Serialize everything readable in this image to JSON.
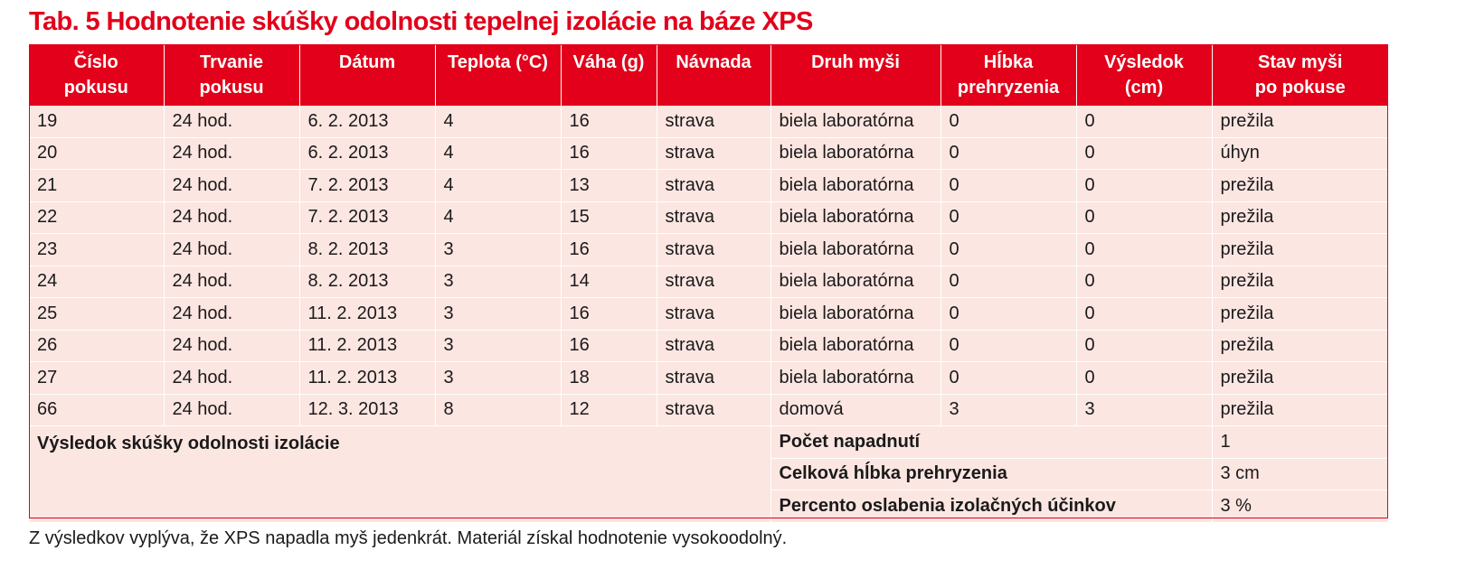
{
  "title": "Tab. 5 Hodnotenie skúšky odolnosti tepelnej izolácie na báze XPS",
  "columns": [
    [
      "Číslo",
      "pokusu"
    ],
    [
      "Trvanie",
      "pokusu"
    ],
    [
      "Dátum",
      ""
    ],
    [
      "Teplota (°C)",
      ""
    ],
    [
      "Váha (g)",
      ""
    ],
    [
      "Návnada",
      ""
    ],
    [
      "Druh myši",
      ""
    ],
    [
      "Hĺbka",
      "prehryzenia"
    ],
    [
      "Výsledok",
      "(cm)"
    ],
    [
      "Stav myši",
      "po pokuse"
    ]
  ],
  "rows": [
    [
      "19",
      "24 hod.",
      "6. 2. 2013",
      "4",
      "16",
      "strava",
      "biela laboratórna",
      "0",
      "0",
      "prežila"
    ],
    [
      "20",
      "24 hod.",
      "6. 2. 2013",
      "4",
      "16",
      "strava",
      "biela laboratórna",
      "0",
      "0",
      "úhyn"
    ],
    [
      "21",
      "24 hod.",
      "7. 2. 2013",
      "4",
      "13",
      "strava",
      "biela laboratórna",
      "0",
      "0",
      "prežila"
    ],
    [
      "22",
      "24 hod.",
      "7. 2. 2013",
      "4",
      "15",
      "strava",
      "biela laboratórna",
      "0",
      "0",
      "prežila"
    ],
    [
      "23",
      "24 hod.",
      "8. 2. 2013",
      "3",
      "16",
      "strava",
      "biela laboratórna",
      "0",
      "0",
      "prežila"
    ],
    [
      "24",
      "24 hod.",
      "8. 2. 2013",
      "3",
      "14",
      "strava",
      "biela laboratórna",
      "0",
      "0",
      "prežila"
    ],
    [
      "25",
      "24 hod.",
      "11. 2. 2013",
      "3",
      "16",
      "strava",
      "biela laboratórna",
      "0",
      "0",
      "prežila"
    ],
    [
      "26",
      "24 hod.",
      "11. 2. 2013",
      "3",
      "16",
      "strava",
      "biela laboratórna",
      "0",
      "0",
      "prežila"
    ],
    [
      "27",
      "24 hod.",
      "11. 2. 2013",
      "3",
      "18",
      "strava",
      "biela laboratórna",
      "0",
      "0",
      "prežila"
    ],
    [
      "66",
      "24 hod.",
      "12. 3. 2013",
      "8",
      "12",
      "strava",
      "domová",
      "3",
      "3",
      "prežila"
    ]
  ],
  "summary": {
    "label": "Výsledok skúšky odolnosti izolácie",
    "items": [
      {
        "label": "Počet napadnutí",
        "value": "1"
      },
      {
        "label": "Celková hĺbka prehryzenia",
        "value": "3 cm"
      },
      {
        "label": "Percento oslabenia izolačných účinkov",
        "value": "3 %"
      }
    ]
  },
  "note": "Z výsledkov vyplýva, že XPS napadla myš jedenkrát. Materiál získal hodnotenie vysokoodolný.",
  "colors": {
    "accent": "#e2001a",
    "row_bg": "#fce6e2",
    "header_text": "#ffffff"
  }
}
